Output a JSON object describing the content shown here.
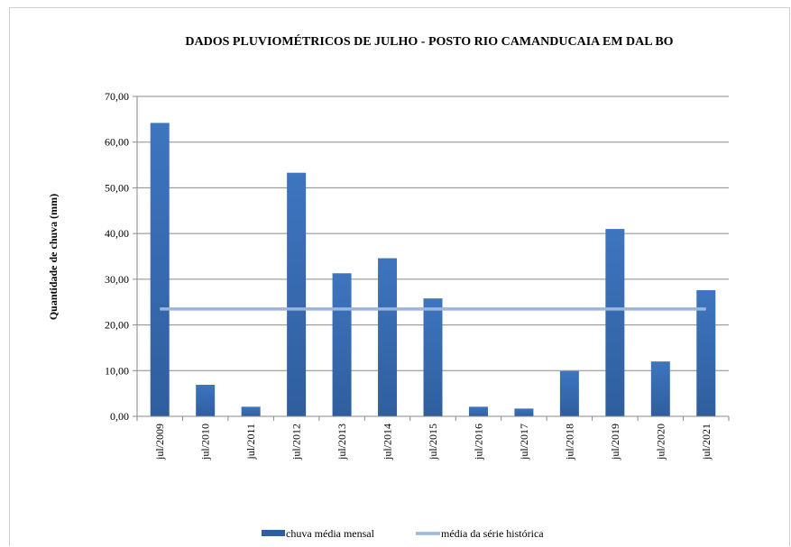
{
  "chart_data": {
    "type": "bar",
    "title": "DADOS PLUVIOMÉTRICOS DE JULHO - POSTO RIO CAMANDUCAIA EM DAL BO",
    "ylabel": "Quantidade de chuva (mm)",
    "xlabel": "",
    "categories": [
      "jul/2009",
      "jul/2010",
      "jul/2011",
      "jul/2012",
      "jul/2013",
      "jul/2014",
      "jul/2015",
      "jul/2016",
      "jul/2017",
      "jul/2018",
      "jul/2019",
      "jul/2020",
      "jul/2021"
    ],
    "series": [
      {
        "name": "chuva média mensal",
        "type": "bar",
        "color": "#2f5e9e",
        "values": [
          64.2,
          6.9,
          2.1,
          53.3,
          31.3,
          34.6,
          25.8,
          2.1,
          1.7,
          9.9,
          41.0,
          12.0,
          27.6
        ]
      },
      {
        "name": "média da série histórica",
        "type": "line",
        "color": "#9bb5dc",
        "values": [
          23.5,
          23.5,
          23.5,
          23.5,
          23.5,
          23.5,
          23.5,
          23.5,
          23.5,
          23.5,
          23.5,
          23.5,
          23.5
        ]
      }
    ],
    "ylim": [
      0,
      70
    ],
    "yticks": [
      "0,00",
      "10,00",
      "20,00",
      "30,00",
      "40,00",
      "50,00",
      "60,00",
      "70,00"
    ],
    "grid": true,
    "legend": "bottom"
  }
}
